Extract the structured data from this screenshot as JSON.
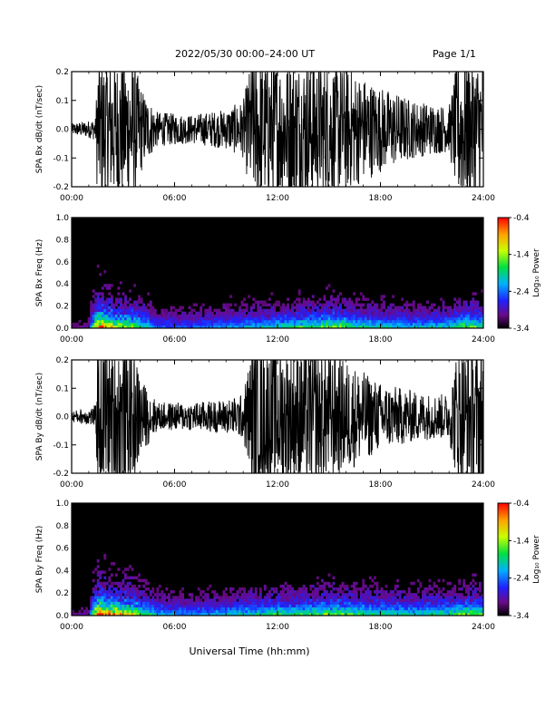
{
  "header": {
    "title": "2022/05/30  00:00–24:00 UT",
    "page": "Page 1/1"
  },
  "xlabel": "Universal Time (hh:mm)",
  "colors": {
    "background": "#ffffff",
    "plot_bg": "#000000",
    "axes": "#000000"
  },
  "chart_data": [
    {
      "type": "line",
      "ylabel": "SPA Bx dB/dt (nT/sec)",
      "xlim": [
        0,
        24
      ],
      "ylim": [
        -0.2,
        0.2
      ],
      "xticks": [
        "00:00",
        "06:00",
        "12:00",
        "18:00",
        "24:00"
      ],
      "yticks": [
        "-0.2",
        "-0.1",
        "0.0",
        "0.1",
        "0.2"
      ],
      "envelope": {
        "x_hours": [
          0,
          1,
          1.4,
          1.5,
          3.5,
          4.2,
          5,
          7,
          9,
          10,
          10.5,
          12,
          14,
          16,
          18,
          20,
          21,
          22,
          22.5,
          24
        ],
        "amplitude": [
          0.02,
          0.03,
          0.04,
          0.25,
          0.25,
          0.13,
          0.06,
          0.05,
          0.07,
          0.1,
          0.25,
          0.25,
          0.25,
          0.22,
          0.15,
          0.1,
          0.09,
          0.08,
          0.25,
          0.25
        ]
      }
    },
    {
      "type": "heatmap",
      "ylabel": "SPA Bx Freq (Hz)",
      "xlim": [
        0,
        24
      ],
      "ylim": [
        0,
        1.0
      ],
      "xticks": [
        "00:00",
        "06:00",
        "12:00",
        "18:00",
        "24:00"
      ],
      "yticks": [
        "0.0",
        "0.2",
        "0.4",
        "0.6",
        "0.8",
        "1.0"
      ],
      "colorbar": {
        "label": "Log₁₀ Power",
        "range": [
          -3.4,
          -0.4
        ],
        "ticks": [
          "-0.4",
          "-1.4",
          "-2.4",
          "-3.4"
        ]
      },
      "activity": {
        "x_hours": [
          0,
          1,
          1.5,
          2.5,
          3.5,
          4.2,
          5,
          7,
          9,
          10.5,
          12,
          14,
          15.5,
          16.5,
          18,
          20,
          22,
          23,
          24
        ],
        "level": [
          0.1,
          0.15,
          0.9,
          0.7,
          0.6,
          0.5,
          0.3,
          0.3,
          0.35,
          0.4,
          0.45,
          0.55,
          0.6,
          0.5,
          0.45,
          0.4,
          0.45,
          0.6,
          0.55
        ]
      }
    },
    {
      "type": "line",
      "ylabel": "SPA By dB/dt (nT/sec)",
      "xlim": [
        0,
        24
      ],
      "ylim": [
        -0.2,
        0.2
      ],
      "xticks": [
        "00:00",
        "06:00",
        "12:00",
        "18:00",
        "24:00"
      ],
      "yticks": [
        "-0.2",
        "-0.1",
        "0.0",
        "0.1",
        "0.2"
      ],
      "envelope": {
        "x_hours": [
          0,
          1,
          1.4,
          1.5,
          3.5,
          4.2,
          5,
          7,
          9,
          10,
          10.5,
          12,
          14,
          16,
          18,
          20,
          21,
          22,
          22.5,
          24
        ],
        "amplitude": [
          0.02,
          0.03,
          0.04,
          0.25,
          0.25,
          0.12,
          0.05,
          0.05,
          0.06,
          0.08,
          0.25,
          0.25,
          0.25,
          0.2,
          0.12,
          0.09,
          0.08,
          0.08,
          0.25,
          0.25
        ]
      }
    },
    {
      "type": "heatmap",
      "ylabel": "SPA By Freq (Hz)",
      "xlim": [
        0,
        24
      ],
      "ylim": [
        0,
        1.0
      ],
      "xticks": [
        "00:00",
        "06:00",
        "12:00",
        "18:00",
        "24:00"
      ],
      "yticks": [
        "0.0",
        "0.2",
        "0.4",
        "0.6",
        "0.8",
        "1.0"
      ],
      "colorbar": {
        "label": "Log₁₀ Power",
        "range": [
          -3.4,
          -0.4
        ],
        "ticks": [
          "-0.4",
          "-1.4",
          "-2.4",
          "-3.4"
        ]
      },
      "activity": {
        "x_hours": [
          0,
          1,
          1.5,
          2.5,
          3.5,
          4.2,
          5,
          7,
          9,
          10.5,
          12,
          14,
          15.5,
          16.5,
          18,
          20,
          22,
          23,
          24
        ],
        "level": [
          0.1,
          0.15,
          0.95,
          0.8,
          0.7,
          0.55,
          0.4,
          0.35,
          0.4,
          0.45,
          0.5,
          0.55,
          0.6,
          0.55,
          0.5,
          0.45,
          0.5,
          0.6,
          0.55
        ]
      }
    }
  ]
}
